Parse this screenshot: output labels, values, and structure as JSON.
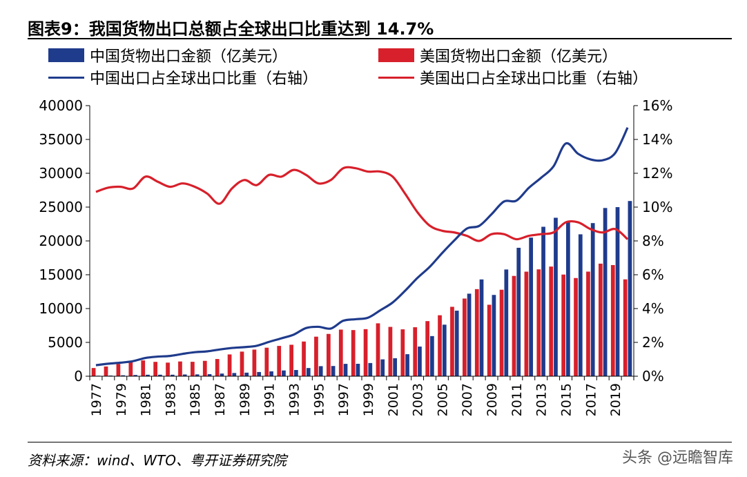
{
  "title": "图表9：我国货物出口总额占全球出口比重达到 14.7%",
  "source": "资料来源：wind、WTO、粤开证券研究院",
  "watermark": "头条 @远瞻智库",
  "colors": {
    "china": "#1f3b8c",
    "us": "#d7202b"
  },
  "chart_data": {
    "type": "bar",
    "title": "图表9：我国货物出口总额占全球出口比重达到 14.7%",
    "x_tick_labels": [
      "1977",
      "1979",
      "1981",
      "1983",
      "1985",
      "1987",
      "1989",
      "1991",
      "1993",
      "1995",
      "1997",
      "1999",
      "2001",
      "2003",
      "2005",
      "2007",
      "2009",
      "2011",
      "2013",
      "2015",
      "2017",
      "2019"
    ],
    "y_left": {
      "ylim": [
        0,
        40000
      ],
      "ticks": [
        "0",
        "5000",
        "10000",
        "15000",
        "20000",
        "25000",
        "30000",
        "35000",
        "40000"
      ]
    },
    "y_right": {
      "ylim": [
        0,
        16
      ],
      "ticks": [
        "0%",
        "2%",
        "4%",
        "6%",
        "8%",
        "10%",
        "12%",
        "14%",
        "16%"
      ]
    },
    "legend_placement": "top",
    "grid": false,
    "x": [
      1977,
      1978,
      1979,
      1980,
      1981,
      1982,
      1983,
      1984,
      1985,
      1986,
      1987,
      1988,
      1989,
      1990,
      1991,
      1992,
      1993,
      1994,
      1995,
      1996,
      1997,
      1998,
      1999,
      2000,
      2001,
      2002,
      2003,
      2004,
      2005,
      2006,
      2007,
      2008,
      2009,
      2010,
      2011,
      2012,
      2013,
      2014,
      2015,
      2016,
      2017,
      2018,
      2019,
      2020
    ],
    "series": [
      {
        "name": "中国货物出口金额（亿美元）",
        "kind": "bar",
        "axis": "left",
        "color": "#1f3b8c",
        "values": [
          76,
          98,
          137,
          181,
          220,
          223,
          222,
          261,
          274,
          309,
          394,
          475,
          525,
          621,
          718,
          849,
          917,
          1210,
          1488,
          1511,
          1828,
          1837,
          1949,
          2492,
          2661,
          3256,
          4382,
          5933,
          7620,
          9689,
          12201,
          14307,
          12016,
          15778,
          18984,
          20487,
          22090,
          23423,
          22735,
          20976,
          22635,
          24867,
          24995,
          25900
        ]
      },
      {
        "name": "美国货物出口金额（亿美元）",
        "kind": "bar",
        "axis": "left",
        "color": "#d7202b",
        "values": [
          1211,
          1438,
          1816,
          2204,
          2335,
          2122,
          2011,
          2179,
          2131,
          2272,
          2545,
          3220,
          3636,
          3935,
          4215,
          4480,
          4649,
          5128,
          5846,
          6252,
          6890,
          6820,
          6957,
          7819,
          7291,
          6932,
          7240,
          8146,
          9013,
          10260,
          11482,
          12874,
          10564,
          12784,
          14826,
          15457,
          15796,
          16211,
          15026,
          14513,
          15462,
          16640,
          16432,
          14316
        ]
      },
      {
        "name": "中国出口占全球出口比重（右轴）",
        "kind": "line",
        "axis": "right",
        "color": "#1f3b8c",
        "values": [
          0.65,
          0.74,
          0.8,
          0.89,
          1.08,
          1.16,
          1.2,
          1.32,
          1.42,
          1.47,
          1.58,
          1.67,
          1.72,
          1.8,
          2.03,
          2.24,
          2.46,
          2.85,
          2.92,
          2.82,
          3.28,
          3.37,
          3.46,
          3.9,
          4.36,
          5.05,
          5.81,
          6.47,
          7.28,
          8.04,
          8.73,
          8.89,
          9.58,
          10.33,
          10.38,
          11.13,
          11.73,
          12.4,
          13.76,
          13.15,
          12.82,
          12.77,
          13.2,
          14.7
        ]
      },
      {
        "name": "美国出口占全球出口比重（右轴）",
        "kind": "line",
        "axis": "right",
        "color": "#d7202b",
        "values": [
          10.9,
          11.15,
          11.2,
          11.1,
          11.8,
          11.5,
          11.2,
          11.4,
          11.2,
          10.8,
          10.2,
          11.1,
          11.6,
          11.3,
          11.9,
          11.8,
          12.2,
          11.9,
          11.4,
          11.6,
          12.3,
          12.3,
          12.1,
          12.1,
          11.8,
          10.8,
          9.7,
          8.9,
          8.6,
          8.5,
          8.3,
          8.0,
          8.4,
          8.4,
          8.1,
          8.3,
          8.4,
          8.5,
          9.1,
          9.1,
          8.7,
          8.5,
          8.7,
          8.1
        ]
      }
    ]
  }
}
